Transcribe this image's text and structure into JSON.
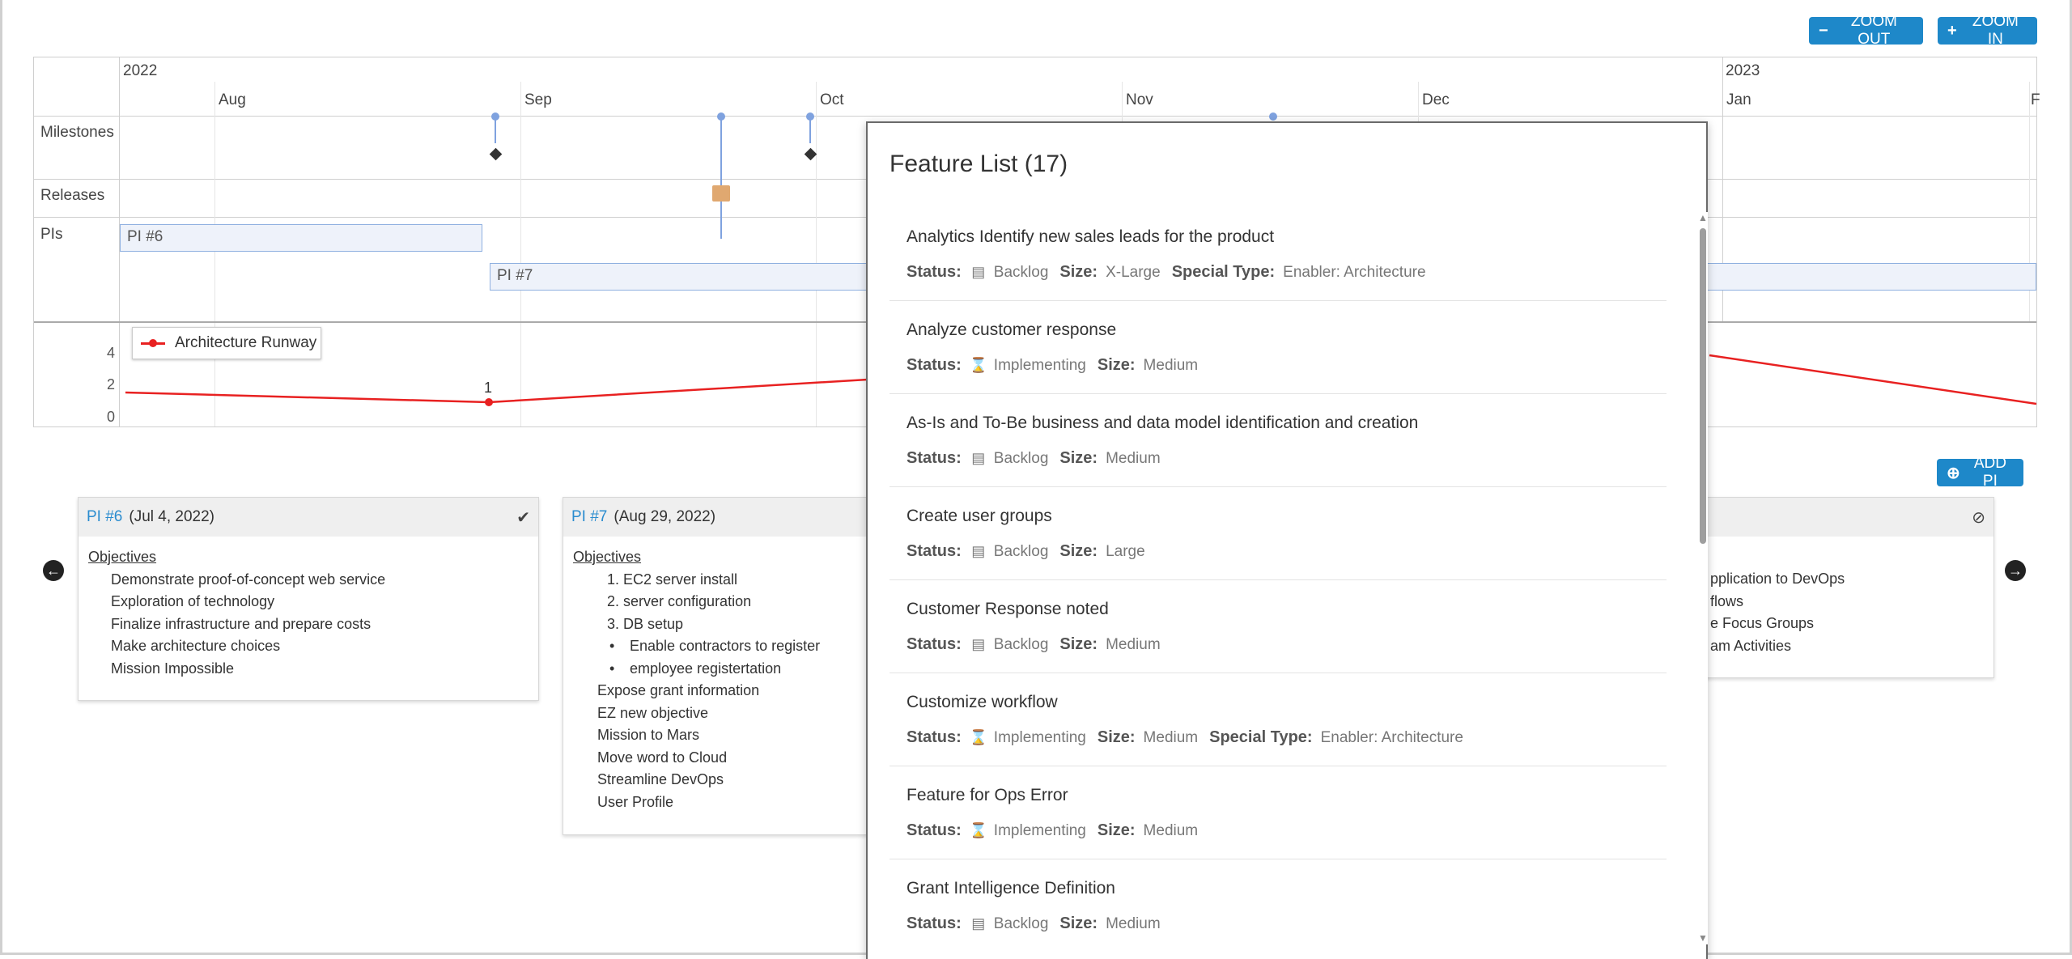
{
  "toolbar": {
    "zoom_out": "ZOOM OUT",
    "zoom_in": "ZOOM IN",
    "add_pi": "ADD PI"
  },
  "timeline": {
    "years": [
      "2022",
      "2023"
    ],
    "months": [
      "Aug",
      "Sep",
      "Oct",
      "Nov",
      "Dec",
      "Jan",
      "F"
    ],
    "rows": [
      "Milestones",
      "Releases",
      "PIs"
    ],
    "pi_bars": [
      "PI #6",
      "PI #7"
    ],
    "legend": "Architecture Runway",
    "y_ticks": [
      "4",
      "2",
      "0"
    ],
    "point_label": "1",
    "line_color": "#e82121"
  },
  "cards": [
    {
      "pi": "PI #6",
      "date": "(Jul 4, 2022)",
      "status_icon": "check-icon",
      "objectives_label": "Objectives",
      "objectives": [
        "Demonstrate proof-of-concept web service",
        "Exploration of technology",
        "Finalize infrastructure and prepare costs",
        "Make architecture choices",
        "Mission Impossible"
      ]
    },
    {
      "pi": "PI #7",
      "date": "(Aug 29, 2022)",
      "objectives_label": "Objectives",
      "numbered": [
        "1. EC2 server install",
        "2. server configuration",
        "3. DB setup"
      ],
      "bullets": [
        "Enable contractors to register",
        "employee registertation"
      ],
      "objectives": [
        "Expose grant information",
        "EZ new objective",
        "Mission to Mars",
        "Move word to Cloud",
        "Streamline DevOps",
        "User Profile"
      ]
    },
    {
      "status_icon": "ban-icon",
      "objectives": [
        "pplication to DevOps",
        "flows",
        "e Focus Groups",
        "am Activities"
      ]
    }
  ],
  "modal": {
    "title": "Feature List (17)",
    "status_key": "Status:",
    "size_key": "Size:",
    "special_key": "Special Type:",
    "features": [
      {
        "name": "Analytics Identify new sales leads for the product",
        "status": "Backlog",
        "size": "X-Large",
        "special": "Enabler: Architecture"
      },
      {
        "name": "Analyze customer response",
        "status": "Implementing",
        "size": "Medium"
      },
      {
        "name": "As-Is and To-Be business and data model identification and creation",
        "status": "Backlog",
        "size": "Medium"
      },
      {
        "name": "Create user groups",
        "status": "Backlog",
        "size": "Large"
      },
      {
        "name": "Customer Response noted",
        "status": "Backlog",
        "size": "Medium"
      },
      {
        "name": "Customize workflow",
        "status": "Implementing",
        "size": "Medium",
        "special": "Enabler: Architecture"
      },
      {
        "name": "Feature for Ops Error",
        "status": "Implementing",
        "size": "Medium"
      },
      {
        "name": "Grant Intelligence Definition",
        "status": "Backlog",
        "size": "Medium"
      }
    ]
  }
}
